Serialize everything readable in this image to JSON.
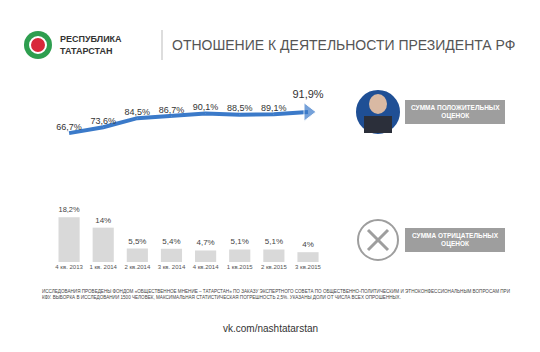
{
  "header": {
    "logo_text": [
      "РЕСПУБЛИКА",
      "ТАТАРСТАН"
    ],
    "title": "ОТНОШЕНИЕ К ДЕЯТЕЛЬНОСТИ ПРЕЗИДЕНТА РФ"
  },
  "chart_data": {
    "type": "line",
    "categories": [
      "4 кв. 2013",
      "1 кв. 2014",
      "2 кв.2014",
      "3 кв. 2014",
      "4 кв.2014",
      "1 кв.2015",
      "2 кв.2015",
      "3 кв.2015"
    ],
    "data_labels": true,
    "tick_labels": "x",
    "grid": false,
    "series": [
      {
        "name": "СУММА ПОЛОЖИТЕЛЬНЫХ ОЦЕНОК",
        "type": "line",
        "color": "#3b7ac9",
        "marker": "arrow",
        "values": [
          66.7,
          73.6,
          84.5,
          86.7,
          90.1,
          88.5,
          89.1,
          91.9
        ],
        "value_labels": [
          "66,7%",
          "73,6%",
          "84,5%",
          "86,7%",
          "90,1%",
          "88,5%",
          "89,1%",
          "91,9%"
        ]
      },
      {
        "name": "СУММА ОТРИЦАТЕЛЬНЫХ ОЦЕНОК",
        "type": "bar",
        "axis": "y2",
        "color": "#d9d9d9",
        "values": [
          18.2,
          14,
          5.5,
          5.4,
          4.7,
          5.1,
          5.1,
          4
        ],
        "value_labels": [
          "18,2%",
          "14%",
          "5,5%",
          "5,4%",
          "4,7%",
          "5,1%",
          "5,1%",
          "4%"
        ]
      }
    ]
  },
  "footnote": [
    "ИССЛЕДОВАНИЯ ПРОВЕДЕНЫ ФОНДОМ «ОБЩЕСТВЕННОЕ МНЕНИЕ – ТАТАРСТАН» ПО ЗАКАЗУ ЭКСПЕРТНОГО СОВЕТА ПО ОБЩЕСТВЕННО-ПОЛИТИЧЕСКИМ И ЭТНОКОНФЕССИОНАЛЬНЫМ ВОПРОСАМ ПРИ",
    "КФУ. ВЫБОРКА В ИССЛЕДОВАНИИ 1500 ЧЕЛОВЕК, МАКСИМАЛЬНАЯ СТАТИСТИЧЕСКАЯ ПОГРЕШНОСТЬ 2,5%. УКАЗАНЫ ДОЛИ ОТ ЧИСЛА ВСЕХ ОПРОШЕННЫХ."
  ],
  "source": "vk.com/nashtatarstan"
}
